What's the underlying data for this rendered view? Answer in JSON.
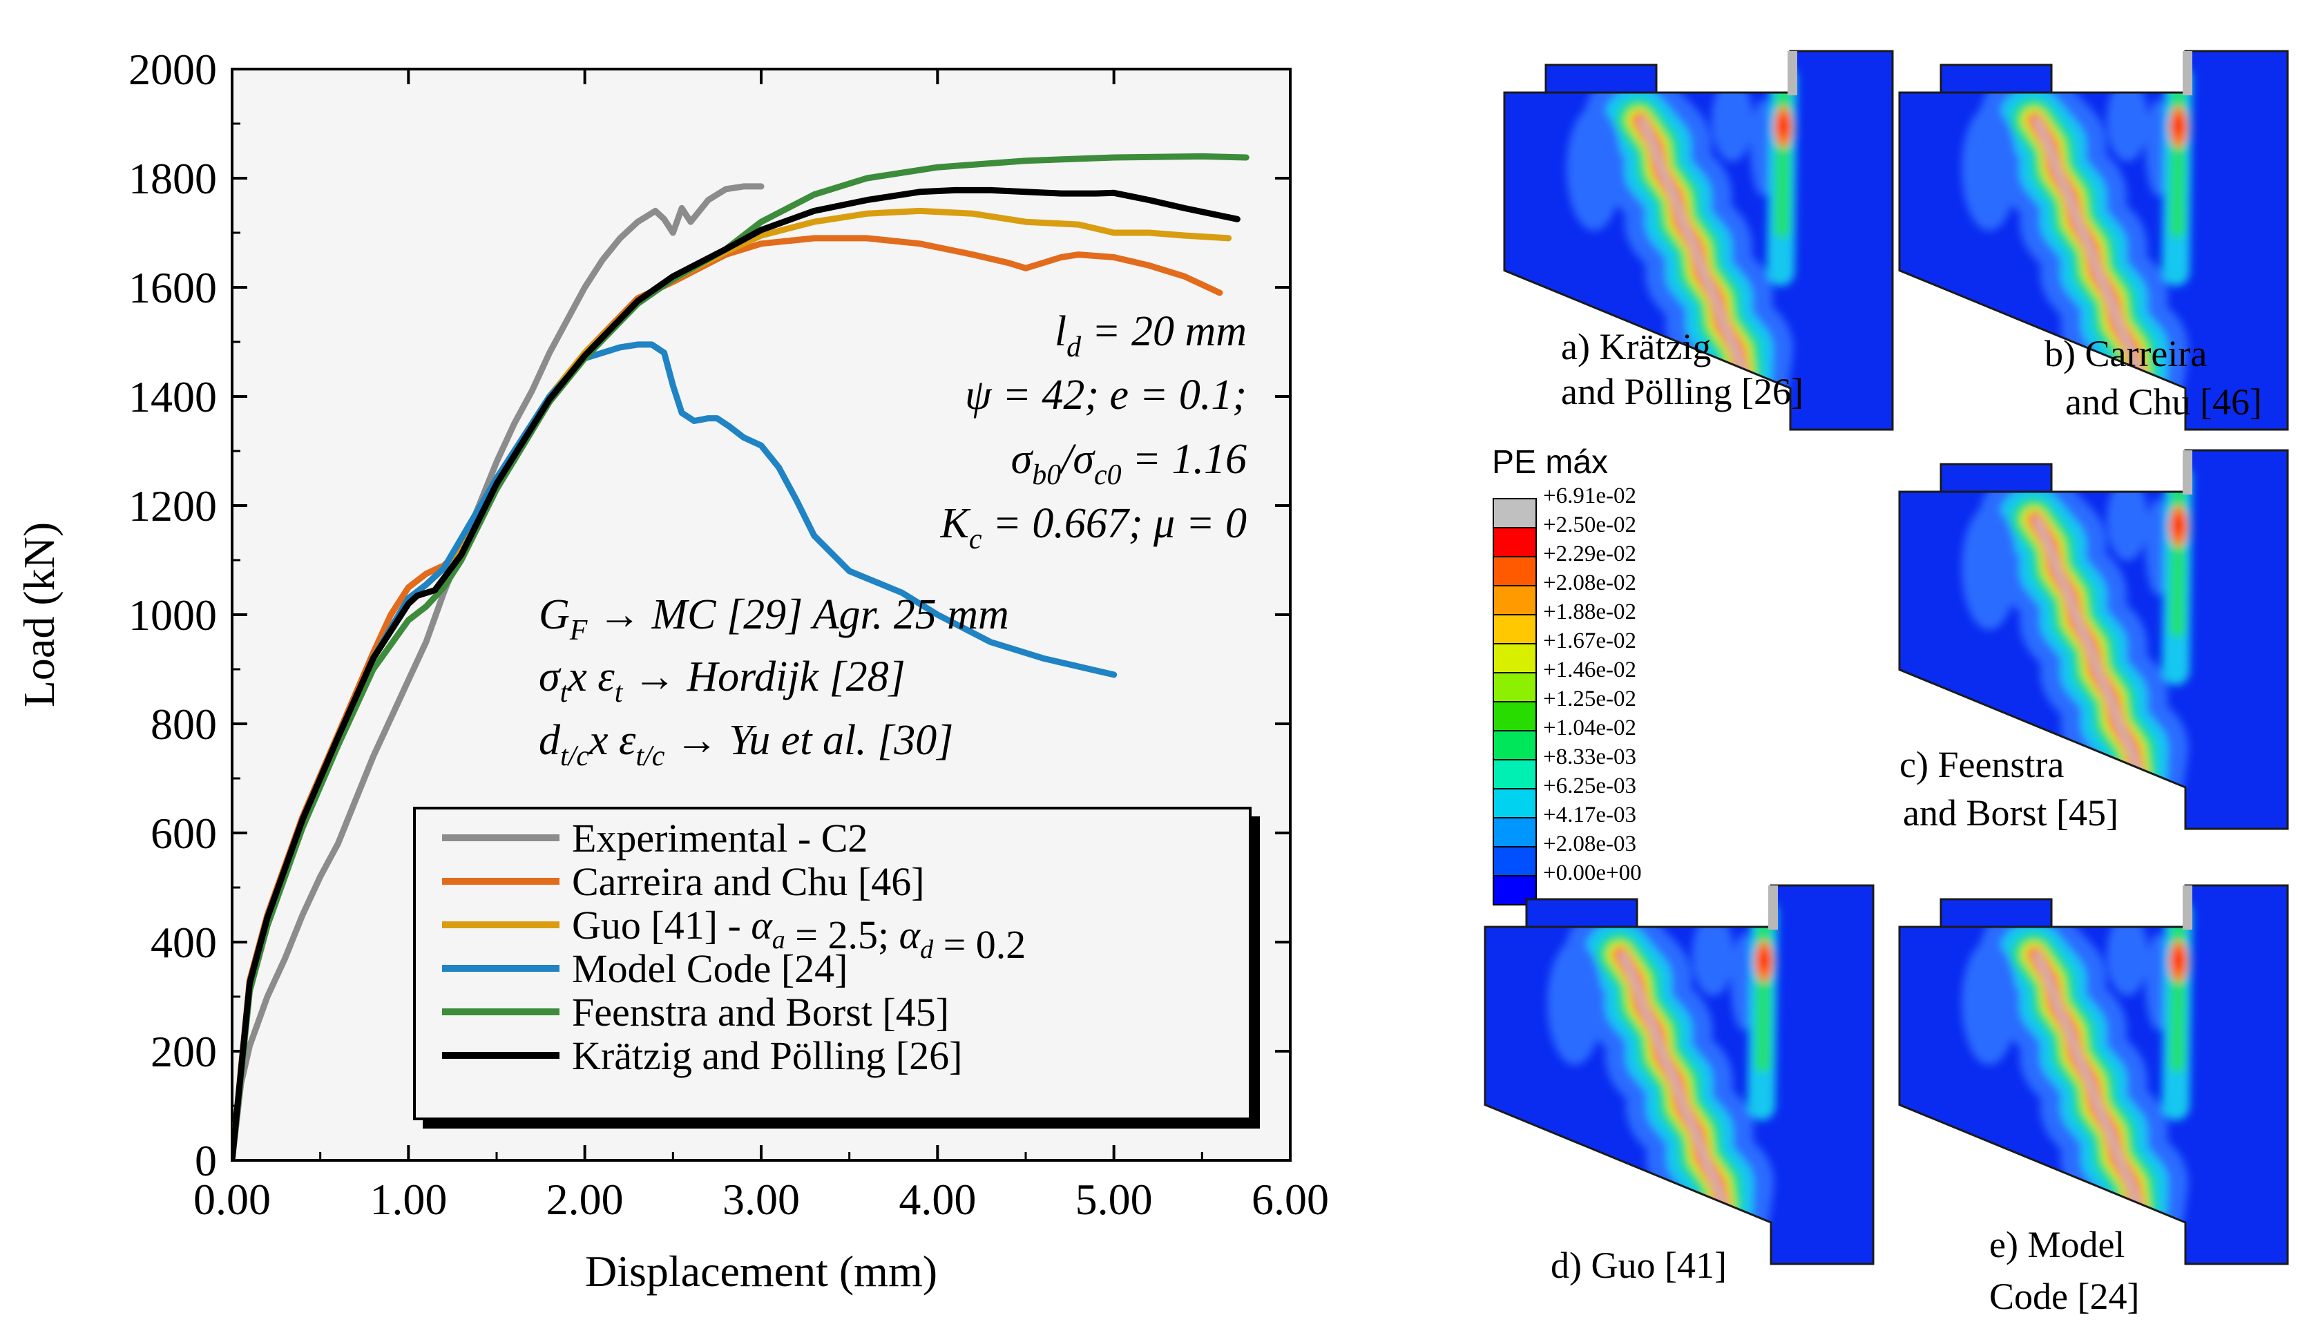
{
  "chart_data": {
    "type": "line",
    "xlabel": "Displacement (mm)",
    "ylabel": "Load (kN)",
    "xlim": [
      0,
      6
    ],
    "ylim": [
      0,
      2000
    ],
    "x_ticks": [
      "0.00",
      "1.00",
      "2.00",
      "3.00",
      "4.00",
      "5.00",
      "6.00"
    ],
    "y_ticks": [
      "0",
      "200",
      "400",
      "600",
      "800",
      "1000",
      "1200",
      "1400",
      "1600",
      "1800",
      "2000"
    ],
    "legend_position": "bottom-right",
    "background_color": "#f4f5f4",
    "annotations": {
      "ld": "l_d = 20 mm",
      "psi_e": "ψ = 42; e = 0.1;",
      "sigma_ratio": "σ_b0/σ_c0 = 1.16",
      "kc_mu": "K_c = 0.667; μ = 0",
      "gf": "G_F → MC [29] Agr. 25 mm",
      "sigma_eps": "σ_t x ε_t → Hordijk [28]",
      "d_eps": "d_t/c x ε_t/c → Yu et al. [30]"
    },
    "series": [
      {
        "name": "Experimental - C2",
        "color": "#8c8c8c",
        "x": [
          0,
          0.05,
          0.1,
          0.2,
          0.3,
          0.4,
          0.5,
          0.6,
          0.7,
          0.8,
          0.9,
          1.0,
          1.1,
          1.2,
          1.3,
          1.4,
          1.5,
          1.6,
          1.7,
          1.8,
          1.9,
          2.0,
          2.1,
          2.2,
          2.3,
          2.4,
          2.45,
          2.5,
          2.55,
          2.6,
          2.7,
          2.8,
          2.9,
          3.0
        ],
        "y": [
          0,
          140,
          210,
          300,
          370,
          450,
          520,
          580,
          660,
          740,
          810,
          880,
          950,
          1040,
          1120,
          1200,
          1280,
          1350,
          1410,
          1480,
          1540,
          1600,
          1650,
          1690,
          1720,
          1740,
          1725,
          1700,
          1745,
          1720,
          1760,
          1780,
          1785,
          1785
        ]
      },
      {
        "name": "Carreira and Chu [46]",
        "color": "#e26b1c",
        "x": [
          0,
          0.1,
          0.2,
          0.4,
          0.6,
          0.8,
          0.9,
          1.0,
          1.1,
          1.2,
          1.3,
          1.5,
          1.8,
          2.0,
          2.3,
          2.5,
          2.8,
          3.0,
          3.3,
          3.6,
          3.9,
          4.2,
          4.4,
          4.5,
          4.6,
          4.7,
          4.8,
          5.0,
          5.2,
          5.4,
          5.6
        ],
        "y": [
          0,
          330,
          450,
          630,
          780,
          930,
          1000,
          1050,
          1075,
          1090,
          1120,
          1250,
          1400,
          1480,
          1580,
          1610,
          1660,
          1680,
          1690,
          1690,
          1680,
          1660,
          1645,
          1635,
          1645,
          1655,
          1660,
          1655,
          1640,
          1620,
          1590
        ]
      },
      {
        "name": "Guo [41]  - α_a = 2.5; α_d = 0.2",
        "color": "#d99d10",
        "x": [
          0,
          0.1,
          0.2,
          0.4,
          0.6,
          0.8,
          1.0,
          1.1,
          1.2,
          1.3,
          1.5,
          1.8,
          2.0,
          2.3,
          2.5,
          2.8,
          3.0,
          3.3,
          3.6,
          3.9,
          4.2,
          4.5,
          4.8,
          5.0,
          5.2,
          5.4,
          5.65
        ],
        "y": [
          0,
          320,
          440,
          620,
          770,
          920,
          1030,
          1055,
          1085,
          1115,
          1240,
          1400,
          1480,
          1575,
          1615,
          1665,
          1695,
          1720,
          1735,
          1740,
          1735,
          1720,
          1715,
          1700,
          1700,
          1695,
          1690
        ]
      },
      {
        "name": "Model Code [24]",
        "color": "#1f83c4",
        "x": [
          0,
          0.1,
          0.2,
          0.4,
          0.6,
          0.8,
          1.0,
          1.1,
          1.2,
          1.5,
          1.8,
          2.0,
          2.2,
          2.3,
          2.38,
          2.45,
          2.5,
          2.55,
          2.62,
          2.7,
          2.75,
          2.82,
          2.9,
          3.0,
          3.1,
          3.2,
          3.3,
          3.5,
          3.8,
          4.0,
          4.3,
          4.6,
          5.0
        ],
        "y": [
          0,
          320,
          440,
          620,
          770,
          920,
          1030,
          1055,
          1085,
          1250,
          1400,
          1470,
          1490,
          1495,
          1495,
          1480,
          1420,
          1370,
          1355,
          1360,
          1360,
          1345,
          1325,
          1310,
          1270,
          1210,
          1145,
          1080,
          1040,
          1000,
          950,
          920,
          890
        ]
      },
      {
        "name": "Feenstra and Borst [45]",
        "color": "#3c8c3c",
        "x": [
          0,
          0.1,
          0.2,
          0.4,
          0.6,
          0.8,
          1.0,
          1.1,
          1.2,
          1.3,
          1.5,
          1.8,
          2.0,
          2.3,
          2.5,
          2.8,
          3.0,
          3.3,
          3.6,
          4.0,
          4.5,
          5.0,
          5.5,
          5.75
        ],
        "y": [
          0,
          310,
          430,
          610,
          760,
          900,
          990,
          1015,
          1050,
          1100,
          1230,
          1390,
          1470,
          1570,
          1615,
          1670,
          1720,
          1770,
          1800,
          1820,
          1832,
          1838,
          1840,
          1838
        ]
      },
      {
        "name": "Krätzig and Pölling [26]",
        "color": "#000000",
        "x": [
          0,
          0.1,
          0.2,
          0.4,
          0.6,
          0.8,
          1.0,
          1.05,
          1.15,
          1.3,
          1.5,
          1.8,
          2.0,
          2.3,
          2.5,
          2.8,
          3.0,
          3.3,
          3.6,
          3.9,
          4.1,
          4.3,
          4.5,
          4.7,
          4.9,
          5.0,
          5.2,
          5.4,
          5.7
        ],
        "y": [
          0,
          325,
          445,
          625,
          775,
          920,
          1020,
          1035,
          1045,
          1110,
          1240,
          1395,
          1475,
          1575,
          1620,
          1670,
          1705,
          1740,
          1760,
          1775,
          1778,
          1778,
          1775,
          1772,
          1772,
          1773,
          1760,
          1745,
          1725
        ]
      }
    ]
  },
  "contour_panels": [
    {
      "id": "a",
      "caption_line1": "a) Krätzig",
      "caption_line2": "and Pölling [26]"
    },
    {
      "id": "b",
      "caption_line1": "b) Carreira",
      "caption_line2": "and Chu [46]"
    },
    {
      "id": "c",
      "caption_line1": "c) Feenstra",
      "caption_line2": "and Borst [45]"
    },
    {
      "id": "d",
      "caption_line1": "d) Guo [41]",
      "caption_line2": ""
    },
    {
      "id": "e",
      "caption_line1": "e) Model",
      "caption_line2": "Code [24]"
    }
  ],
  "contour_legend": {
    "title": "PE máx",
    "entries": [
      {
        "label": "+6.91e-02",
        "color": "#c0c0c0"
      },
      {
        "label": "+2.50e-02",
        "color": "#ff0000"
      },
      {
        "label": "+2.29e-02",
        "color": "#ff5a00"
      },
      {
        "label": "+2.08e-02",
        "color": "#ff9a00"
      },
      {
        "label": "+1.88e-02",
        "color": "#ffc800"
      },
      {
        "label": "+1.67e-02",
        "color": "#d8f000"
      },
      {
        "label": "+1.46e-02",
        "color": "#8cf000"
      },
      {
        "label": "+1.25e-02",
        "color": "#28dc00"
      },
      {
        "label": "+1.04e-02",
        "color": "#00e65a"
      },
      {
        "label": "+8.33e-03",
        "color": "#00f0b4"
      },
      {
        "label": "+6.25e-03",
        "color": "#00d2f0"
      },
      {
        "label": "+4.17e-03",
        "color": "#0096ff"
      },
      {
        "label": "+2.08e-03",
        "color": "#0050ff"
      },
      {
        "label": "+0.00e+00",
        "color": "#0000ff"
      }
    ]
  }
}
